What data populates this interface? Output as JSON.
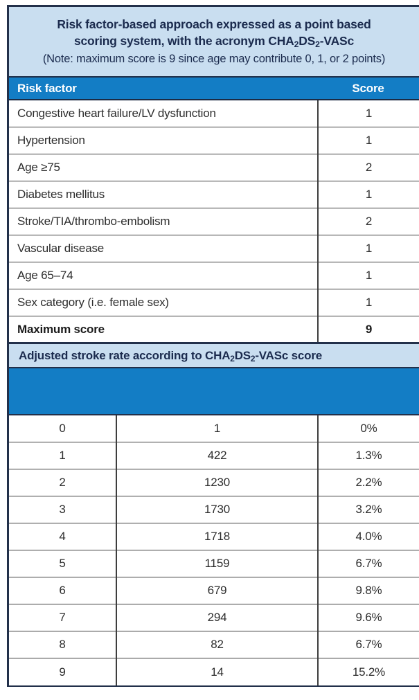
{
  "colors": {
    "accent_blue": "#137dc5",
    "light_blue": "#c9def0",
    "navy_text": "#1b2b4e",
    "frame_border": "#22304a",
    "grid_line": "#3e3e3e"
  },
  "title_panel": {
    "line1": "Risk factor-based approach expressed as a point based",
    "line2_pre": "scoring system, with the acronym CHA",
    "line2_sub1": "2",
    "line2_mid": "DS",
    "line2_sub2": "2",
    "line2_post": "-VASc",
    "note": "(Note: maximum score is 9 since age may contribute 0, 1, or 2 points)"
  },
  "risk_table": {
    "header": {
      "risk_factor": "Risk factor",
      "score": "Score"
    },
    "rows": [
      {
        "label": "Congestive heart failure/LV dysfunction",
        "score": "1"
      },
      {
        "label": "Hypertension",
        "score": "1"
      },
      {
        "label": "Age ≥75",
        "score": "2"
      },
      {
        "label": "Diabetes mellitus",
        "score": "1"
      },
      {
        "label": "Stroke/TIA/thrombo-embolism",
        "score": "2"
      },
      {
        "label": "Vascular disease",
        "score": "1"
      },
      {
        "label": "Age 65–74",
        "score": "1"
      },
      {
        "label": "Sex category (i.e. female sex)",
        "score": "1"
      }
    ],
    "footer": {
      "label": "Maximum score",
      "score": "9"
    }
  },
  "stroke_section": {
    "header_pre": "Adjusted stroke rate according to CHA",
    "header_sub1": "2",
    "header_mid": "DS",
    "header_sub2": "2",
    "header_post": "-VASc score"
  },
  "stroke_table": {
    "rows": [
      {
        "score": "0",
        "patients": "1",
        "rate": "0%"
      },
      {
        "score": "1",
        "patients": "422",
        "rate": "1.3%"
      },
      {
        "score": "2",
        "patients": "1230",
        "rate": "2.2%"
      },
      {
        "score": "3",
        "patients": "1730",
        "rate": "3.2%"
      },
      {
        "score": "4",
        "patients": "1718",
        "rate": "4.0%"
      },
      {
        "score": "5",
        "patients": "1159",
        "rate": "6.7%"
      },
      {
        "score": "6",
        "patients": "679",
        "rate": "9.8%"
      },
      {
        "score": "7",
        "patients": "294",
        "rate": "9.6%"
      },
      {
        "score": "8",
        "patients": "82",
        "rate": "6.7%"
      },
      {
        "score": "9",
        "patients": "14",
        "rate": "15.2%"
      }
    ]
  }
}
